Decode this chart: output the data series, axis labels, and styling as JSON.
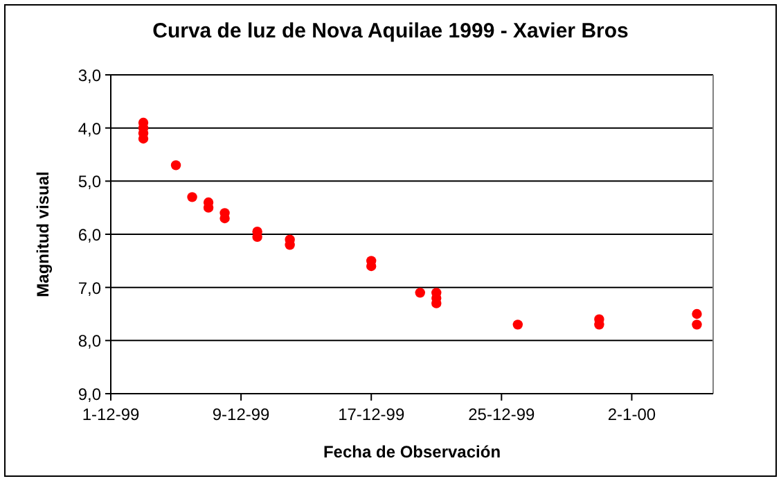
{
  "chart_data": {
    "type": "scatter",
    "title": "Curva de luz de Nova Aquilae 1999 - Xavier Bros",
    "xlabel": "Fecha de Observación",
    "ylabel": "Magnitud visual",
    "x": [
      "1999-12-03",
      "1999-12-03",
      "1999-12-03",
      "1999-12-03",
      "1999-12-05",
      "1999-12-06",
      "1999-12-07",
      "1999-12-07",
      "1999-12-08",
      "1999-12-08",
      "1999-12-10",
      "1999-12-10",
      "1999-12-12",
      "1999-12-12",
      "1999-12-17",
      "1999-12-17",
      "1999-12-20",
      "1999-12-21",
      "1999-12-21",
      "1999-12-21",
      "1999-12-26",
      "1999-12-31",
      "1999-12-31",
      "2000-01-06",
      "2000-01-06"
    ],
    "series": [
      {
        "color": "#ff0000",
        "values": [
          3.9,
          4.0,
          4.1,
          4.2,
          4.7,
          5.3,
          5.4,
          5.5,
          5.6,
          5.7,
          5.95,
          6.05,
          6.1,
          6.2,
          6.5,
          6.6,
          7.1,
          7.1,
          7.2,
          7.3,
          7.7,
          7.6,
          7.7,
          7.5,
          7.7
        ]
      }
    ],
    "xlim": [
      "1999-12-01",
      "2000-01-07"
    ],
    "xticks": [
      {
        "value": "1999-12-01",
        "label": "1-12-99"
      },
      {
        "value": "1999-12-09",
        "label": "9-12-99"
      },
      {
        "value": "1999-12-17",
        "label": "17-12-99"
      },
      {
        "value": "1999-12-25",
        "label": "25-12-99"
      },
      {
        "value": "2000-01-02",
        "label": "2-1-00"
      }
    ],
    "ylim": [
      9,
      3
    ],
    "yticks": [
      {
        "value": 3,
        "label": "3,0"
      },
      {
        "value": 4,
        "label": "4,0"
      },
      {
        "value": 5,
        "label": "5,0"
      },
      {
        "value": 6,
        "label": "6,0"
      },
      {
        "value": 7,
        "label": "7,0"
      },
      {
        "value": 8,
        "label": "8,0"
      },
      {
        "value": 9,
        "label": "9,0"
      }
    ],
    "grid": "y",
    "marker": "circle"
  }
}
